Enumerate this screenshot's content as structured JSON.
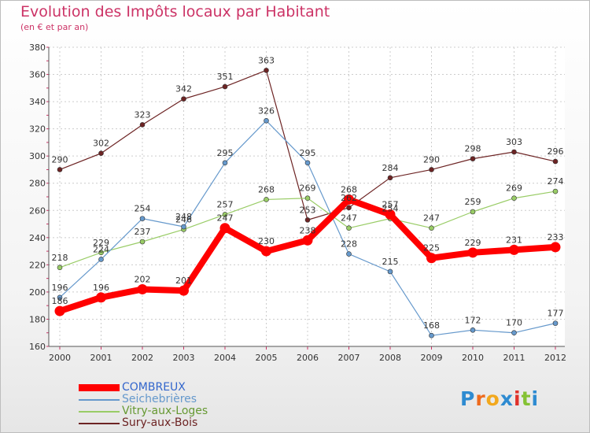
{
  "chart_data": {
    "type": "line",
    "title": "Evolution des Impôts locaux par Habitant",
    "subtitle": "(en € et par an)",
    "xlabel": "",
    "ylabel": "",
    "ylim": [
      160,
      380
    ],
    "yticks": [
      160,
      180,
      200,
      220,
      240,
      260,
      280,
      300,
      320,
      340,
      360,
      380
    ],
    "x": [
      "2000",
      "2001",
      "2002",
      "2003",
      "2004",
      "2005",
      "2006",
      "2007",
      "2008",
      "2009",
      "2010",
      "2011",
      "2012"
    ],
    "grid": true,
    "legend_position": "bottom-left",
    "series": [
      {
        "name": "COMBREUX",
        "color": "#ff0000",
        "values": [
          186,
          196,
          202,
          201,
          247,
          230,
          238,
          268,
          257,
          225,
          229,
          231,
          233
        ]
      },
      {
        "name": "Seichebrières",
        "color": "#6699cc",
        "values": [
          196,
          224,
          254,
          248,
          295,
          326,
          295,
          228,
          215,
          168,
          172,
          170,
          177
        ]
      },
      {
        "name": "Vitry-aux-Loges",
        "color": "#99cc66",
        "values": [
          218,
          229,
          237,
          246,
          257,
          268,
          269,
          247,
          254,
          247,
          259,
          269,
          274
        ]
      },
      {
        "name": "Sury-aux-Bois",
        "color": "#6d2424",
        "values": [
          290,
          302,
          323,
          342,
          351,
          363,
          253,
          262,
          284,
          290,
          298,
          303,
          296
        ]
      }
    ]
  },
  "brand": {
    "letters": [
      "P",
      "r",
      "o",
      "x",
      "i",
      "t",
      "i"
    ],
    "colors": [
      "#2e8bd1",
      "#ee6b1e",
      "#f2a81d",
      "#2e8bd1",
      "#e0322b",
      "#84c234",
      "#2e8bd1"
    ]
  }
}
